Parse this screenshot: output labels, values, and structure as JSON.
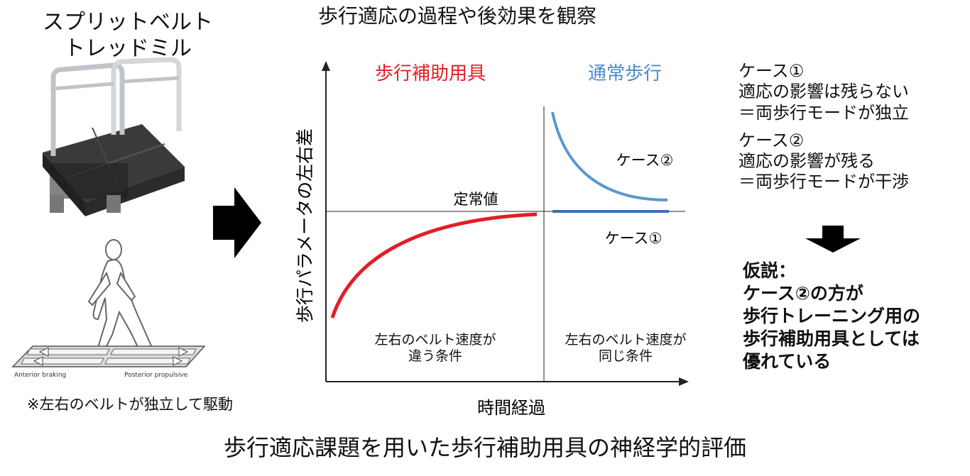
{
  "treadmill": {
    "title": "スプリットベルト\nトレッドミル",
    "label_anterior": "Anterior braking",
    "label_posterior": "Posterior propulsive",
    "note": "※左右のベルトが独立して駆動"
  },
  "diagram": {
    "title": "歩行適応の過程や後効果を観察",
    "xlabel": "時間経過",
    "ylabel": "歩行パラメータの左右差",
    "phase_aid": "歩行補助用具",
    "phase_normal": "通常歩行",
    "steady_label": "定常値",
    "curve_case2_label": "ケース②",
    "curve_case1_label": "ケース①",
    "condition_left": "左右のベルト速度が\n違う条件",
    "condition_right": "左右のベルト速度が\n同じ条件"
  },
  "cases": [
    {
      "title": "ケース①",
      "line1": "適応の影響は残らない",
      "line2": "＝両歩行モードが独立"
    },
    {
      "title": "ケース②",
      "line1": "適応の影響が残る",
      "line2": "＝両歩行モードが干渉"
    }
  ],
  "hypothesis": {
    "text": "仮説：\nケース②の方が\n歩行トレーニング用の\n歩行補助用具としては\n優れている"
  },
  "caption": "歩行適応課題を用いた歩行補助用具の神経学的評価",
  "colors": {
    "aid_red": "#e21e26",
    "normal_blue": "#4a8ac7",
    "case1_blue": "#3f6eb5",
    "case2_blue": "#5b96cf",
    "axis": "#222222"
  }
}
